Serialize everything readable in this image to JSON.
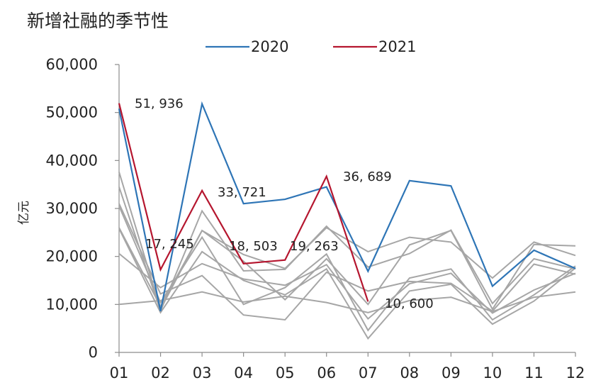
{
  "chart_data": {
    "type": "line",
    "title": "新增社融的季节性",
    "ylabel": "亿元",
    "xlabel": "",
    "categories": [
      "01",
      "02",
      "03",
      "04",
      "05",
      "06",
      "07",
      "08",
      "09",
      "10",
      "11",
      "12"
    ],
    "ylim": [
      0,
      60000
    ],
    "yticks": [
      0,
      10000,
      20000,
      30000,
      40000,
      50000,
      60000
    ],
    "ytick_labels": [
      "0",
      "10,000",
      "20,000",
      "30,000",
      "40,000",
      "50,000",
      "60,000"
    ],
    "grid": false,
    "legend_position": "top",
    "series": [
      {
        "name": "",
        "color": "#a6a6a6",
        "role": "background",
        "values": [
          10000,
          10800,
          12600,
          10500,
          11700,
          10400,
          8300,
          10800,
          11500,
          8500,
          11500,
          12600
        ]
      },
      {
        "name": "",
        "color": "#a6a6a6",
        "role": "background",
        "values": [
          20600,
          13500,
          18500,
          15300,
          14000,
          18300,
          7000,
          14300,
          16500,
          8200,
          13000,
          16500
        ]
      },
      {
        "name": "",
        "color": "#a6a6a6",
        "role": "background",
        "values": [
          25800,
          8300,
          21000,
          15000,
          12000,
          17400,
          2900,
          12800,
          14200,
          5900,
          10700,
          17600
        ]
      },
      {
        "name": "",
        "color": "#a6a6a6",
        "role": "background",
        "values": [
          30500,
          10400,
          24000,
          10000,
          13500,
          20500,
          4600,
          15500,
          17400,
          6800,
          12000,
          18000
        ]
      },
      {
        "name": "",
        "color": "#a6a6a6",
        "role": "background",
        "values": [
          31000,
          12200,
          16000,
          7800,
          6800,
          16700,
          12800,
          14800,
          14400,
          8600,
          18400,
          16300
        ]
      },
      {
        "name": "",
        "color": "#a6a6a6",
        "role": "background",
        "values": [
          34500,
          8600,
          29500,
          17000,
          17300,
          26300,
          17800,
          20600,
          25500,
          10200,
          19500,
          17400
        ]
      },
      {
        "name": "",
        "color": "#a6a6a6",
        "role": "background",
        "values": [
          37600,
          9000,
          25400,
          20400,
          17500,
          26000,
          21000,
          24000,
          23000,
          15500,
          23000,
          20200
        ]
      },
      {
        "name": "",
        "color": "#a6a6a6",
        "role": "background",
        "values": [
          26000,
          9600,
          25400,
          19000,
          11000,
          19500,
          10000,
          22400,
          25400,
          9000,
          22500,
          22200
        ]
      },
      {
        "name": "2020",
        "color": "#2e75b6",
        "role": "highlight",
        "values": [
          50800,
          8600,
          51800,
          31000,
          31900,
          34500,
          16900,
          35800,
          34700,
          13800,
          21300,
          17500
        ]
      },
      {
        "name": "2021",
        "color": "#b5162f",
        "role": "highlight",
        "values": [
          51936,
          17245,
          33721,
          18503,
          19263,
          36689,
          10600,
          null,
          null,
          null,
          null,
          null
        ]
      }
    ],
    "annotations": [
      {
        "text": "51, 936",
        "category": "01",
        "value": 51936
      },
      {
        "text": "17, 245",
        "category": "02",
        "value": 17245
      },
      {
        "text": "33, 721",
        "category": "03",
        "value": 33721
      },
      {
        "text": "18, 503",
        "category": "04",
        "value": 18503
      },
      {
        "text": "19, 263",
        "category": "05",
        "value": 19263
      },
      {
        "text": "36, 689",
        "category": "06",
        "value": 36689
      },
      {
        "text": "10, 600",
        "category": "07",
        "value": 10600
      }
    ]
  }
}
